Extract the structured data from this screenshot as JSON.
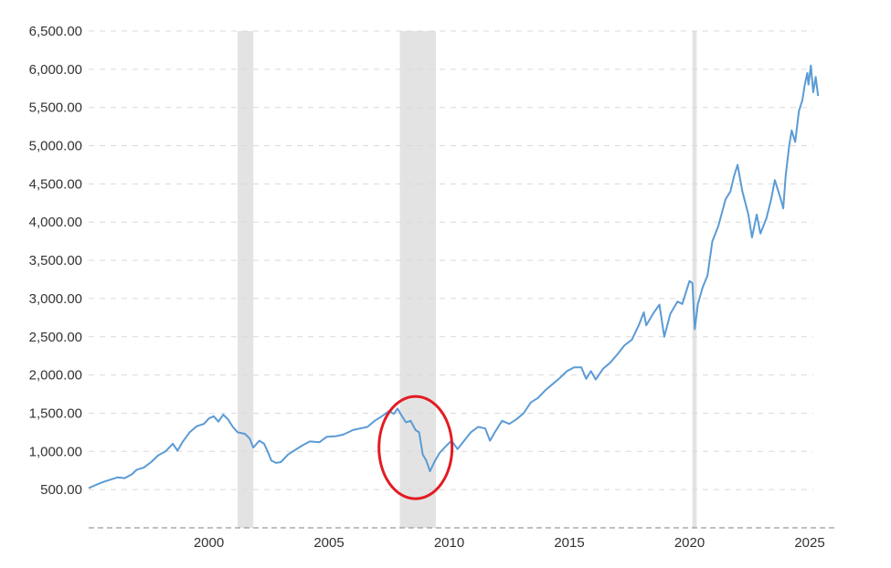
{
  "chart_data": {
    "type": "line",
    "title": "",
    "xlabel": "",
    "ylabel": "",
    "xlim": [
      1995.0,
      2024.9
    ],
    "ylim": [
      0,
      6500
    ],
    "grid": true,
    "legend": "none",
    "y_ticks": [
      {
        "value": 500,
        "label": "500.00"
      },
      {
        "value": 1000,
        "label": "1,000.00"
      },
      {
        "value": 1500,
        "label": "1,500.00"
      },
      {
        "value": 2000,
        "label": "2,000.00"
      },
      {
        "value": 2500,
        "label": "2,500.00"
      },
      {
        "value": 3000,
        "label": "3,000.00"
      },
      {
        "value": 3500,
        "label": "3,500.00"
      },
      {
        "value": 4000,
        "label": "4,000.00"
      },
      {
        "value": 4500,
        "label": "4,500.00"
      },
      {
        "value": 5000,
        "label": "5,000.00"
      },
      {
        "value": 5500,
        "label": "5,500.00"
      },
      {
        "value": 6000,
        "label": "6,000.00"
      },
      {
        "value": 6500,
        "label": "6,500.00"
      }
    ],
    "x_ticks": [
      {
        "value": 2000,
        "label": "2000"
      },
      {
        "value": 2005,
        "label": "2005"
      },
      {
        "value": 2010,
        "label": "2010"
      },
      {
        "value": 2015,
        "label": "2015"
      },
      {
        "value": 2020,
        "label": "2020"
      },
      {
        "value": 2025,
        "label": "2025"
      }
    ],
    "recessions": [
      {
        "start": 2001.2,
        "end": 2001.85
      },
      {
        "start": 2007.95,
        "end": 2009.45
      },
      {
        "start": 2020.12,
        "end": 2020.3
      }
    ],
    "highlight_circle": {
      "x": 2008.6,
      "y": 1050,
      "color": "#e31b23"
    },
    "series": [
      {
        "color": "#5b9bd5",
        "points": [
          [
            1995.0,
            520
          ],
          [
            1995.3,
            560
          ],
          [
            1995.6,
            600
          ],
          [
            1995.9,
            630
          ],
          [
            1996.2,
            660
          ],
          [
            1996.5,
            650
          ],
          [
            1996.8,
            700
          ],
          [
            1997.0,
            760
          ],
          [
            1997.3,
            790
          ],
          [
            1997.6,
            860
          ],
          [
            1997.9,
            950
          ],
          [
            1998.2,
            1000
          ],
          [
            1998.5,
            1100
          ],
          [
            1998.7,
            1010
          ],
          [
            1998.9,
            1120
          ],
          [
            1999.2,
            1250
          ],
          [
            1999.5,
            1330
          ],
          [
            1999.8,
            1360
          ],
          [
            2000.0,
            1430
          ],
          [
            2000.2,
            1460
          ],
          [
            2000.4,
            1390
          ],
          [
            2000.6,
            1480
          ],
          [
            2000.8,
            1420
          ],
          [
            2001.0,
            1320
          ],
          [
            2001.2,
            1250
          ],
          [
            2001.5,
            1230
          ],
          [
            2001.7,
            1170
          ],
          [
            2001.85,
            1050
          ],
          [
            2002.1,
            1140
          ],
          [
            2002.3,
            1100
          ],
          [
            2002.5,
            960
          ],
          [
            2002.6,
            880
          ],
          [
            2002.8,
            850
          ],
          [
            2003.0,
            860
          ],
          [
            2003.3,
            960
          ],
          [
            2003.6,
            1020
          ],
          [
            2003.9,
            1080
          ],
          [
            2004.2,
            1130
          ],
          [
            2004.6,
            1120
          ],
          [
            2004.9,
            1190
          ],
          [
            2005.3,
            1200
          ],
          [
            2005.6,
            1220
          ],
          [
            2006.0,
            1280
          ],
          [
            2006.3,
            1300
          ],
          [
            2006.6,
            1320
          ],
          [
            2006.9,
            1400
          ],
          [
            2007.2,
            1460
          ],
          [
            2007.5,
            1530
          ],
          [
            2007.7,
            1490
          ],
          [
            2007.85,
            1560
          ],
          [
            2008.0,
            1480
          ],
          [
            2008.2,
            1380
          ],
          [
            2008.4,
            1400
          ],
          [
            2008.6,
            1280
          ],
          [
            2008.75,
            1250
          ],
          [
            2008.9,
            960
          ],
          [
            2009.05,
            880
          ],
          [
            2009.2,
            740
          ],
          [
            2009.4,
            870
          ],
          [
            2009.6,
            980
          ],
          [
            2009.9,
            1080
          ],
          [
            2010.1,
            1140
          ],
          [
            2010.35,
            1030
          ],
          [
            2010.6,
            1130
          ],
          [
            2010.9,
            1250
          ],
          [
            2011.2,
            1320
          ],
          [
            2011.5,
            1300
          ],
          [
            2011.7,
            1140
          ],
          [
            2011.9,
            1250
          ],
          [
            2012.2,
            1400
          ],
          [
            2012.5,
            1360
          ],
          [
            2012.8,
            1420
          ],
          [
            2013.1,
            1500
          ],
          [
            2013.4,
            1640
          ],
          [
            2013.7,
            1700
          ],
          [
            2014.0,
            1800
          ],
          [
            2014.3,
            1880
          ],
          [
            2014.6,
            1960
          ],
          [
            2014.9,
            2050
          ],
          [
            2015.2,
            2100
          ],
          [
            2015.5,
            2100
          ],
          [
            2015.7,
            1950
          ],
          [
            2015.9,
            2050
          ],
          [
            2016.1,
            1940
          ],
          [
            2016.4,
            2080
          ],
          [
            2016.7,
            2160
          ],
          [
            2017.0,
            2270
          ],
          [
            2017.3,
            2390
          ],
          [
            2017.6,
            2460
          ],
          [
            2017.9,
            2660
          ],
          [
            2018.1,
            2820
          ],
          [
            2018.2,
            2650
          ],
          [
            2018.5,
            2810
          ],
          [
            2018.75,
            2920
          ],
          [
            2018.95,
            2500
          ],
          [
            2019.2,
            2800
          ],
          [
            2019.5,
            2960
          ],
          [
            2019.7,
            2930
          ],
          [
            2020.0,
            3230
          ],
          [
            2020.12,
            3200
          ],
          [
            2020.22,
            2600
          ],
          [
            2020.35,
            2930
          ],
          [
            2020.55,
            3150
          ],
          [
            2020.75,
            3300
          ],
          [
            2020.95,
            3750
          ],
          [
            2021.2,
            3950
          ],
          [
            2021.5,
            4300
          ],
          [
            2021.7,
            4400
          ],
          [
            2021.85,
            4600
          ],
          [
            2022.0,
            4750
          ],
          [
            2022.2,
            4400
          ],
          [
            2022.45,
            4100
          ],
          [
            2022.6,
            3800
          ],
          [
            2022.8,
            4100
          ],
          [
            2022.95,
            3850
          ],
          [
            2023.2,
            4050
          ],
          [
            2023.4,
            4300
          ],
          [
            2023.55,
            4550
          ],
          [
            2023.8,
            4300
          ],
          [
            2023.9,
            4180
          ],
          [
            2024.0,
            4600
          ],
          [
            2024.15,
            5000
          ],
          [
            2024.25,
            5200
          ],
          [
            2024.4,
            5050
          ],
          [
            2024.55,
            5450
          ],
          [
            2024.7,
            5600
          ],
          [
            2024.8,
            5800
          ],
          [
            2024.9,
            5950
          ],
          [
            2024.95,
            5800
          ],
          [
            2025.05,
            6050
          ],
          [
            2025.15,
            5700
          ],
          [
            2025.25,
            5900
          ],
          [
            2025.35,
            5650
          ]
        ]
      }
    ]
  }
}
